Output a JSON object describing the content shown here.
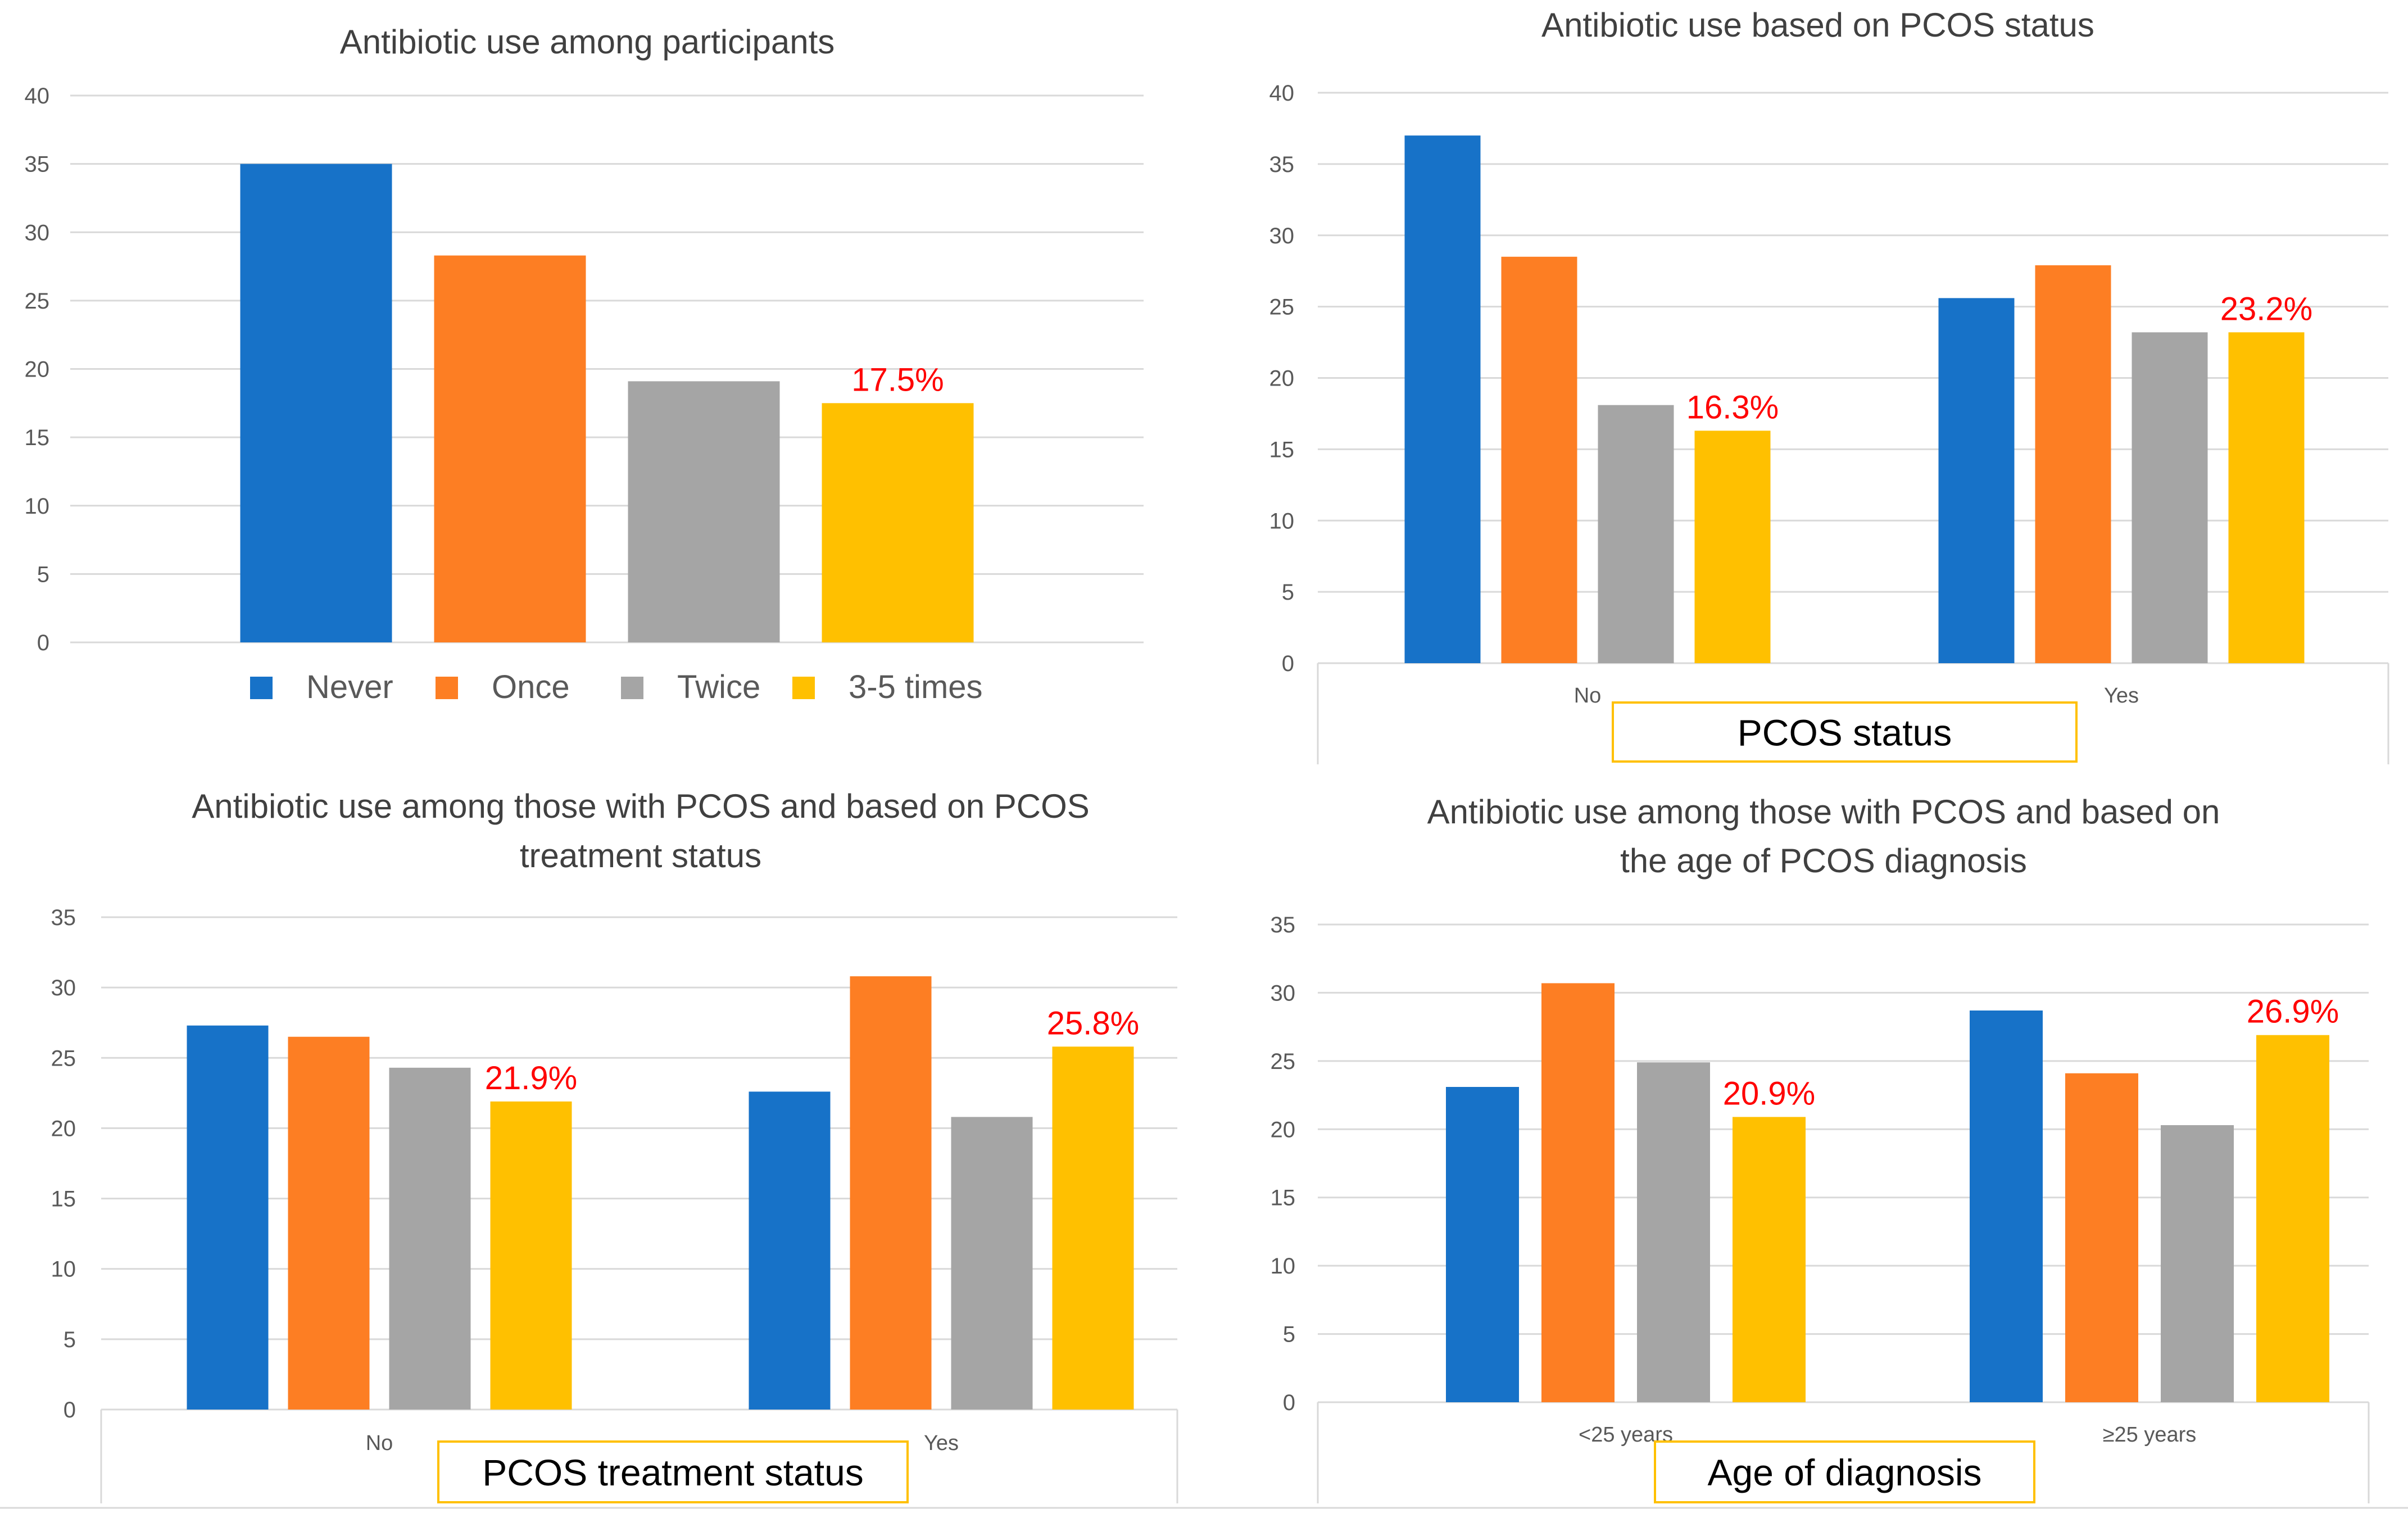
{
  "colors": {
    "never": "#1772C8",
    "once": "#FD7E23",
    "twice": "#A5A5A5",
    "three_five": "#FFC000",
    "highlight_label": "#FF0000",
    "grid": "#D9D9D9",
    "axis_text": "#595959",
    "title_text": "#404040",
    "box_border": "#FFC000"
  },
  "legend": {
    "items": [
      {
        "label": "Never",
        "color_key": "never"
      },
      {
        "label": "Once",
        "color_key": "once"
      },
      {
        "label": "Twice",
        "color_key": "twice"
      },
      {
        "label": "3-5 times",
        "color_key": "three_five"
      }
    ]
  },
  "chart_data": [
    {
      "id": "participants",
      "type": "bar",
      "title": "Antibiotic use among participants",
      "categories": [
        ""
      ],
      "series": [
        {
          "name": "Never",
          "color_key": "never",
          "values": [
            35
          ]
        },
        {
          "name": "Once",
          "color_key": "once",
          "values": [
            28.3
          ]
        },
        {
          "name": "Twice",
          "color_key": "twice",
          "values": [
            19.1
          ]
        },
        {
          "name": "3-5 times",
          "color_key": "three_five",
          "values": [
            17.5
          ]
        }
      ],
      "data_labels": [
        {
          "series": 3,
          "category": 0,
          "text": "17.5%"
        }
      ],
      "ylim": [
        0,
        40
      ],
      "yticks": [
        0,
        5,
        10,
        15,
        20,
        25,
        30,
        35,
        40
      ],
      "xlabel": "",
      "legend": "bottom"
    },
    {
      "id": "pcos-status",
      "type": "bar",
      "title": "Antibiotic use based on PCOS status",
      "categories": [
        "No",
        "Yes"
      ],
      "series": [
        {
          "name": "Never",
          "color_key": "never",
          "values": [
            37,
            25.6
          ]
        },
        {
          "name": "Once",
          "color_key": "once",
          "values": [
            28.5,
            27.9
          ]
        },
        {
          "name": "Twice",
          "color_key": "twice",
          "values": [
            18.1,
            23.2
          ]
        },
        {
          "name": "3-5 times",
          "color_key": "three_five",
          "values": [
            16.3,
            23.2
          ]
        }
      ],
      "data_labels": [
        {
          "series": 3,
          "category": 0,
          "text": "16.3%"
        },
        {
          "series": 3,
          "category": 1,
          "text": "23.2%"
        }
      ],
      "ylim": [
        0,
        40
      ],
      "yticks": [
        0,
        5,
        10,
        15,
        20,
        25,
        30,
        35,
        40
      ],
      "xlabel": "PCOS status"
    },
    {
      "id": "pcos-treatment",
      "type": "bar",
      "title": [
        "Antibiotic use among those with PCOS and based on PCOS",
        "treatment status"
      ],
      "categories": [
        "No",
        "Yes"
      ],
      "series": [
        {
          "name": "Never",
          "color_key": "never",
          "values": [
            27.3,
            22.6
          ]
        },
        {
          "name": "Once",
          "color_key": "once",
          "values": [
            26.5,
            30.8
          ]
        },
        {
          "name": "Twice",
          "color_key": "twice",
          "values": [
            24.3,
            20.8
          ]
        },
        {
          "name": "3-5 times",
          "color_key": "three_five",
          "values": [
            21.9,
            25.8
          ]
        }
      ],
      "data_labels": [
        {
          "series": 3,
          "category": 0,
          "text": "21.9%"
        },
        {
          "series": 3,
          "category": 1,
          "text": "25.8%"
        }
      ],
      "ylim": [
        0,
        35
      ],
      "yticks": [
        0,
        5,
        10,
        15,
        20,
        25,
        30,
        35
      ],
      "xlabel": "PCOS treatment status"
    },
    {
      "id": "age-diagnosis",
      "type": "bar",
      "title": [
        "Antibiotic use among those with PCOS and based on",
        "the age of PCOS diagnosis"
      ],
      "categories": [
        "<25 years",
        "≥25 years"
      ],
      "series": [
        {
          "name": "Never",
          "color_key": "never",
          "values": [
            23.1,
            28.7
          ]
        },
        {
          "name": "Once",
          "color_key": "once",
          "values": [
            30.7,
            24.1
          ]
        },
        {
          "name": "Twice",
          "color_key": "twice",
          "values": [
            24.9,
            20.3
          ]
        },
        {
          "name": "3-5 times",
          "color_key": "three_five",
          "values": [
            20.9,
            26.9
          ]
        }
      ],
      "data_labels": [
        {
          "series": 3,
          "category": 0,
          "text": "20.9%"
        },
        {
          "series": 3,
          "category": 1,
          "text": "26.9%"
        }
      ],
      "ylim": [
        0,
        35
      ],
      "yticks": [
        0,
        5,
        10,
        15,
        20,
        25,
        30,
        35
      ],
      "xlabel": "Age of diagnosis"
    }
  ]
}
